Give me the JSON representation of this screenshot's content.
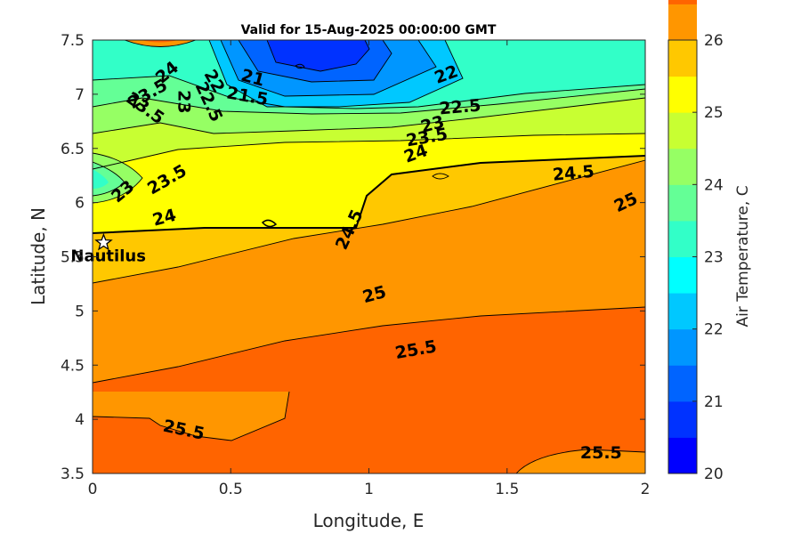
{
  "chart_data": {
    "type": "contour",
    "title": "Valid for 15-Aug-2025 00:00:00 GMT",
    "xlabel": "Longitude, E",
    "ylabel": "Latitude, N",
    "xlim": [
      0,
      2
    ],
    "ylim": [
      3.5,
      7.5
    ],
    "x_ticks": [
      0,
      0.5,
      1,
      1.5,
      2
    ],
    "x_tick_labels": [
      "0",
      "0.5",
      "1",
      "1.5",
      "2"
    ],
    "y_ticks": [
      3.5,
      4,
      4.5,
      5,
      5.5,
      6,
      6.5,
      7,
      7.5
    ],
    "y_tick_labels": [
      "3.5",
      "4",
      "4.5",
      "5",
      "5.5",
      "6",
      "6.5",
      "7",
      "7.5"
    ],
    "colorbar": {
      "label": "Air Temperature, C",
      "range": [
        20,
        26
      ],
      "step": 0.5,
      "ticks": [
        20,
        21,
        22,
        23,
        24,
        25,
        26
      ],
      "tick_labels": [
        "20",
        "21",
        "22",
        "23",
        "24",
        "25",
        "26"
      ],
      "colors": [
        "#0000ff",
        "#0032ff",
        "#0064ff",
        "#0096ff",
        "#00c8ff",
        "#00ffff",
        "#32ffc8",
        "#64ff96",
        "#96ff64",
        "#c8ff32",
        "#ffff00",
        "#ffc800",
        "#ff9600",
        "#ff6400",
        "#ff3200",
        "#ff0000"
      ]
    },
    "contour_labels": [
      {
        "text": "21",
        "lon": 0.58,
        "lat": 7.15,
        "angle": 15
      },
      {
        "text": "21.5",
        "lon": 0.56,
        "lat": 6.98,
        "angle": 10
      },
      {
        "text": "22",
        "lon": 1.28,
        "lat": 7.18,
        "angle": -20
      },
      {
        "text": "22",
        "lon": 0.44,
        "lat": 7.12,
        "angle": 60
      },
      {
        "text": "22.5",
        "lon": 1.33,
        "lat": 6.88,
        "angle": -5
      },
      {
        "text": "22.5",
        "lon": 0.42,
        "lat": 6.93,
        "angle": 65
      },
      {
        "text": "23",
        "lon": 1.23,
        "lat": 6.72,
        "angle": -15
      },
      {
        "text": "23",
        "lon": 0.33,
        "lat": 6.93,
        "angle": 90
      },
      {
        "text": "23",
        "lon": 0.11,
        "lat": 6.1,
        "angle": -40
      },
      {
        "text": "23.5",
        "lon": 0.2,
        "lat": 7.0,
        "angle": -30
      },
      {
        "text": "23.5",
        "lon": 0.19,
        "lat": 6.87,
        "angle": 35
      },
      {
        "text": "23.5",
        "lon": 1.21,
        "lat": 6.6,
        "angle": -10
      },
      {
        "text": "23.5",
        "lon": 0.27,
        "lat": 6.21,
        "angle": -30
      },
      {
        "text": "24",
        "lon": 0.27,
        "lat": 7.2,
        "angle": -40
      },
      {
        "text": "24",
        "lon": 1.17,
        "lat": 6.45,
        "angle": -20
      },
      {
        "text": "24",
        "lon": 0.26,
        "lat": 5.86,
        "angle": -15
      },
      {
        "text": "24.5",
        "lon": 1.74,
        "lat": 6.27,
        "angle": -5
      },
      {
        "text": "24.5",
        "lon": 0.93,
        "lat": 5.75,
        "angle": -65
      },
      {
        "text": "25",
        "lon": 1.93,
        "lat": 6.0,
        "angle": -25
      },
      {
        "text": "25",
        "lon": 1.02,
        "lat": 5.15,
        "angle": -15
      },
      {
        "text": "25.5",
        "lon": 1.17,
        "lat": 4.64,
        "angle": -10
      },
      {
        "text": "25.5",
        "lon": 0.33,
        "lat": 3.9,
        "angle": 12
      },
      {
        "text": "25.5",
        "lon": 1.84,
        "lat": 3.69,
        "angle": 0
      }
    ]
  },
  "marker": {
    "name": "Nautilus",
    "lon": 0.04,
    "lat": 5.63
  }
}
